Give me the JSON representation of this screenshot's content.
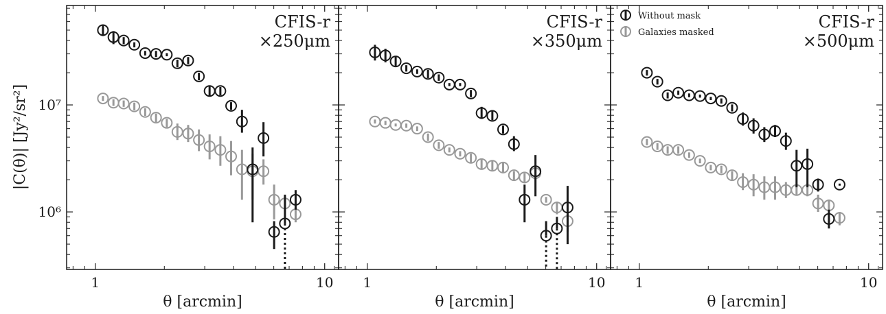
{
  "chart_data": {
    "type": "scatter",
    "xlabel": "θ [arcmin]",
    "ylabel": "|C(θ)| [Jy²/sr²]",
    "xscale": "log",
    "yscale": "log",
    "xlim": [
      0.75,
      11.5
    ],
    "ylim": [
      290000,
      85000000
    ],
    "shared_y": true,
    "x_ticks": [
      1,
      10
    ],
    "x_tick_labels": [
      "1",
      "10"
    ],
    "y_ticks": [
      1000000,
      10000000
    ],
    "y_tick_labels": [
      "10⁶",
      "10⁷"
    ],
    "colors": {
      "without_mask": "#1a1a1a",
      "masked": "#999999"
    },
    "legend": {
      "placement": "top-left of third panel",
      "entries": [
        {
          "label": "Without mask",
          "series": "without_mask"
        },
        {
          "label": "Galaxies masked",
          "series": "masked"
        }
      ]
    },
    "panels": [
      {
        "title_main": "CFIS-r",
        "title_scale": "×250μm",
        "series": [
          {
            "name": "Without mask",
            "key": "without_mask",
            "points": [
              {
                "x": 1.08,
                "y": 50000000,
                "lo": 44000000,
                "hi": 56000000
              },
              {
                "x": 1.2,
                "y": 43000000,
                "lo": 37000000,
                "hi": 49000000
              },
              {
                "x": 1.33,
                "y": 40000000,
                "lo": 37000000,
                "hi": 43000000
              },
              {
                "x": 1.48,
                "y": 36500000,
                "lo": 34500000,
                "hi": 38500000
              },
              {
                "x": 1.65,
                "y": 30500000,
                "lo": 29000000,
                "hi": 32000000
              },
              {
                "x": 1.84,
                "y": 30000000,
                "lo": 28000000,
                "hi": 32000000
              },
              {
                "x": 2.05,
                "y": 29500000,
                "lo": 28500000,
                "hi": 30500000
              },
              {
                "x": 2.28,
                "y": 24500000,
                "lo": 22500000,
                "hi": 26500000
              },
              {
                "x": 2.54,
                "y": 26000000,
                "lo": 24000000,
                "hi": 28000000
              },
              {
                "x": 2.83,
                "y": 18500000,
                "lo": 17000000,
                "hi": 20000000
              },
              {
                "x": 3.15,
                "y": 13500000,
                "lo": 12000000,
                "hi": 15000000
              },
              {
                "x": 3.51,
                "y": 13500000,
                "lo": 12300000,
                "hi": 14700000
              },
              {
                "x": 3.91,
                "y": 9800000,
                "lo": 9000000,
                "hi": 10600000
              },
              {
                "x": 4.36,
                "y": 7000000,
                "lo": 5500000,
                "hi": 9000000
              },
              {
                "x": 4.85,
                "y": 2500000,
                "lo": 800000,
                "hi": 4000000
              },
              {
                "x": 5.41,
                "y": 4900000,
                "lo": 3300000,
                "hi": 6900000
              },
              {
                "x": 6.02,
                "y": 650000,
                "lo": 450000,
                "hi": 820000
              },
              {
                "x": 6.71,
                "y": 780000,
                "lo": 290000,
                "hi": 1450000,
                "lower_open": true
              },
              {
                "x": 7.47,
                "y": 1300000,
                "lo": 1050000,
                "hi": 1600000
              }
            ]
          },
          {
            "name": "Galaxies masked",
            "key": "masked",
            "points": [
              {
                "x": 1.08,
                "y": 11500000,
                "lo": 10900000,
                "hi": 12100000
              },
              {
                "x": 1.2,
                "y": 10500000,
                "lo": 9800000,
                "hi": 11300000
              },
              {
                "x": 1.33,
                "y": 10300000,
                "lo": 9600000,
                "hi": 11000000
              },
              {
                "x": 1.48,
                "y": 9700000,
                "lo": 8900000,
                "hi": 10500000
              },
              {
                "x": 1.65,
                "y": 8600000,
                "lo": 7900000,
                "hi": 9300000
              },
              {
                "x": 1.84,
                "y": 7600000,
                "lo": 6900000,
                "hi": 8300000
              },
              {
                "x": 2.05,
                "y": 6800000,
                "lo": 6200000,
                "hi": 7400000
              },
              {
                "x": 2.28,
                "y": 5600000,
                "lo": 4700000,
                "hi": 6700000
              },
              {
                "x": 2.54,
                "y": 5400000,
                "lo": 4500000,
                "hi": 6500000
              },
              {
                "x": 2.83,
                "y": 4700000,
                "lo": 3700000,
                "hi": 5900000
              },
              {
                "x": 3.15,
                "y": 4100000,
                "lo": 3100000,
                "hi": 5300000
              },
              {
                "x": 3.51,
                "y": 3800000,
                "lo": 2700000,
                "hi": 5100000
              },
              {
                "x": 3.91,
                "y": 3300000,
                "lo": 2200000,
                "hi": 4600000
              },
              {
                "x": 4.36,
                "y": 2500000,
                "lo": 1300000,
                "hi": 3800000
              },
              {
                "x": 4.85,
                "y": 2400000,
                "lo": 1300000,
                "hi": 3500000
              },
              {
                "x": 5.41,
                "y": 2400000,
                "lo": 1800000,
                "hi": 3100000
              },
              {
                "x": 6.02,
                "y": 1300000,
                "lo": 850000,
                "hi": 1800000
              },
              {
                "x": 6.71,
                "y": 1200000,
                "lo": 1050000,
                "hi": 1400000
              },
              {
                "x": 7.47,
                "y": 950000,
                "lo": 800000,
                "hi": 1100000
              }
            ]
          }
        ]
      },
      {
        "title_main": "CFIS-r",
        "title_scale": "×350μm",
        "series": [
          {
            "name": "Without mask",
            "key": "without_mask",
            "points": [
              {
                "x": 1.08,
                "y": 31000000,
                "lo": 26000000,
                "hi": 36500000
              },
              {
                "x": 1.2,
                "y": 29000000,
                "lo": 25000000,
                "hi": 33500000
              },
              {
                "x": 1.33,
                "y": 25500000,
                "lo": 23000000,
                "hi": 28500000
              },
              {
                "x": 1.48,
                "y": 22000000,
                "lo": 20500000,
                "hi": 23500000
              },
              {
                "x": 1.65,
                "y": 20500000,
                "lo": 19500000,
                "hi": 21500000
              },
              {
                "x": 1.84,
                "y": 19500000,
                "lo": 17800000,
                "hi": 21300000
              },
              {
                "x": 2.05,
                "y": 18000000,
                "lo": 16800000,
                "hi": 19300000
              },
              {
                "x": 2.28,
                "y": 15500000,
                "lo": 15000000,
                "hi": 16000000
              },
              {
                "x": 2.54,
                "y": 15500000,
                "lo": 15000000,
                "hi": 16000000
              },
              {
                "x": 2.83,
                "y": 12800000,
                "lo": 11800000,
                "hi": 13800000
              },
              {
                "x": 3.15,
                "y": 8400000,
                "lo": 7400000,
                "hi": 9600000
              },
              {
                "x": 3.51,
                "y": 7900000,
                "lo": 7200000,
                "hi": 8700000
              },
              {
                "x": 3.91,
                "y": 5900000,
                "lo": 5400000,
                "hi": 6400000
              },
              {
                "x": 4.36,
                "y": 4300000,
                "lo": 3700000,
                "hi": 5100000
              },
              {
                "x": 4.85,
                "y": 1300000,
                "lo": 800000,
                "hi": 1800000
              },
              {
                "x": 5.41,
                "y": 2400000,
                "lo": 1400000,
                "hi": 3400000
              },
              {
                "x": 6.02,
                "y": 600000,
                "lo": 290000,
                "hi": 820000,
                "lower_open": true
              },
              {
                "x": 6.71,
                "y": 700000,
                "lo": 290000,
                "hi": 900000,
                "lower_open": true
              },
              {
                "x": 7.47,
                "y": 1100000,
                "lo": 500000,
                "hi": 1750000
              }
            ]
          },
          {
            "name": "Galaxies masked",
            "key": "masked",
            "points": [
              {
                "x": 1.08,
                "y": 7000000,
                "lo": 6700000,
                "hi": 7300000
              },
              {
                "x": 1.2,
                "y": 6800000,
                "lo": 6500000,
                "hi": 7100000
              },
              {
                "x": 1.33,
                "y": 6500000,
                "lo": 6300000,
                "hi": 6700000
              },
              {
                "x": 1.48,
                "y": 6400000,
                "lo": 6100000,
                "hi": 6700000
              },
              {
                "x": 1.65,
                "y": 6000000,
                "lo": 5700000,
                "hi": 6300000
              },
              {
                "x": 1.84,
                "y": 5000000,
                "lo": 4600000,
                "hi": 5400000
              },
              {
                "x": 2.05,
                "y": 4200000,
                "lo": 3900000,
                "hi": 4500000
              },
              {
                "x": 2.28,
                "y": 3800000,
                "lo": 3600000,
                "hi": 4000000
              },
              {
                "x": 2.54,
                "y": 3500000,
                "lo": 3300000,
                "hi": 3700000
              },
              {
                "x": 2.83,
                "y": 3200000,
                "lo": 2900000,
                "hi": 3500000
              },
              {
                "x": 3.15,
                "y": 2800000,
                "lo": 2500000,
                "hi": 3100000
              },
              {
                "x": 3.51,
                "y": 2700000,
                "lo": 2400000,
                "hi": 3000000
              },
              {
                "x": 3.91,
                "y": 2600000,
                "lo": 2300000,
                "hi": 2900000
              },
              {
                "x": 4.36,
                "y": 2200000,
                "lo": 2000000,
                "hi": 2400000
              },
              {
                "x": 4.85,
                "y": 2100000,
                "lo": 1900000,
                "hi": 2300000
              },
              {
                "x": 5.41,
                "y": 2300000,
                "lo": 2000000,
                "hi": 2600000
              },
              {
                "x": 6.02,
                "y": 1300000,
                "lo": 1220000,
                "hi": 1380000
              },
              {
                "x": 6.71,
                "y": 1100000,
                "lo": 950000,
                "hi": 1250000
              },
              {
                "x": 7.47,
                "y": 820000,
                "lo": 650000,
                "hi": 1000000
              }
            ]
          }
        ]
      },
      {
        "title_main": "CFIS-r",
        "title_scale": "×500μm",
        "series": [
          {
            "name": "Without mask",
            "key": "without_mask",
            "points": [
              {
                "x": 1.08,
                "y": 20000000,
                "lo": 18800000,
                "hi": 21200000
              },
              {
                "x": 1.2,
                "y": 16500000,
                "lo": 15500000,
                "hi": 17500000
              },
              {
                "x": 1.33,
                "y": 12300000,
                "lo": 11500000,
                "hi": 13100000
              },
              {
                "x": 1.48,
                "y": 13000000,
                "lo": 12400000,
                "hi": 13600000
              },
              {
                "x": 1.65,
                "y": 12300000,
                "lo": 11800000,
                "hi": 12800000
              },
              {
                "x": 1.84,
                "y": 12100000,
                "lo": 11700000,
                "hi": 12500000
              },
              {
                "x": 2.05,
                "y": 11500000,
                "lo": 11100000,
                "hi": 11900000
              },
              {
                "x": 2.28,
                "y": 10900000,
                "lo": 10300000,
                "hi": 11500000
              },
              {
                "x": 2.54,
                "y": 9400000,
                "lo": 8700000,
                "hi": 10100000
              },
              {
                "x": 2.83,
                "y": 7400000,
                "lo": 6400000,
                "hi": 8500000
              },
              {
                "x": 3.15,
                "y": 6400000,
                "lo": 5400000,
                "hi": 7500000
              },
              {
                "x": 3.51,
                "y": 5300000,
                "lo": 4500000,
                "hi": 6200000
              },
              {
                "x": 3.91,
                "y": 5700000,
                "lo": 5000000,
                "hi": 6500000
              },
              {
                "x": 4.36,
                "y": 4600000,
                "lo": 3800000,
                "hi": 5500000
              },
              {
                "x": 4.85,
                "y": 2700000,
                "lo": 1700000,
                "hi": 3800000
              },
              {
                "x": 5.41,
                "y": 2800000,
                "lo": 1700000,
                "hi": 3900000
              },
              {
                "x": 6.02,
                "y": 1800000,
                "lo": 1550000,
                "hi": 2050000
              },
              {
                "x": 6.71,
                "y": 860000,
                "lo": 700000,
                "hi": 1050000
              },
              {
                "x": 7.47,
                "y": 1800000,
                "lo": 1760000,
                "hi": 1840000
              }
            ]
          },
          {
            "name": "Galaxies masked",
            "key": "masked",
            "points": [
              {
                "x": 1.08,
                "y": 4500000,
                "lo": 4200000,
                "hi": 4800000
              },
              {
                "x": 1.2,
                "y": 4100000,
                "lo": 3800000,
                "hi": 4400000
              },
              {
                "x": 1.33,
                "y": 3800000,
                "lo": 3500000,
                "hi": 4100000
              },
              {
                "x": 1.48,
                "y": 3800000,
                "lo": 3500000,
                "hi": 4100000
              },
              {
                "x": 1.65,
                "y": 3400000,
                "lo": 3200000,
                "hi": 3600000
              },
              {
                "x": 1.84,
                "y": 3000000,
                "lo": 2850000,
                "hi": 3150000
              },
              {
                "x": 2.05,
                "y": 2600000,
                "lo": 2450000,
                "hi": 2750000
              },
              {
                "x": 2.28,
                "y": 2500000,
                "lo": 2300000,
                "hi": 2700000
              },
              {
                "x": 2.54,
                "y": 2200000,
                "lo": 2000000,
                "hi": 2400000
              },
              {
                "x": 2.83,
                "y": 1900000,
                "lo": 1600000,
                "hi": 2300000
              },
              {
                "x": 3.15,
                "y": 1800000,
                "lo": 1400000,
                "hi": 2250000
              },
              {
                "x": 3.51,
                "y": 1700000,
                "lo": 1300000,
                "hi": 2150000
              },
              {
                "x": 3.91,
                "y": 1700000,
                "lo": 1300000,
                "hi": 2150000
              },
              {
                "x": 4.36,
                "y": 1600000,
                "lo": 1350000,
                "hi": 1900000
              },
              {
                "x": 4.85,
                "y": 1600000,
                "lo": 1450000,
                "hi": 1800000
              },
              {
                "x": 5.41,
                "y": 1600000,
                "lo": 1400000,
                "hi": 1850000
              },
              {
                "x": 6.02,
                "y": 1200000,
                "lo": 1000000,
                "hi": 1450000
              },
              {
                "x": 6.71,
                "y": 1150000,
                "lo": 1000000,
                "hi": 1300000
              },
              {
                "x": 7.47,
                "y": 880000,
                "lo": 750000,
                "hi": 1000000
              }
            ]
          }
        ]
      }
    ]
  }
}
